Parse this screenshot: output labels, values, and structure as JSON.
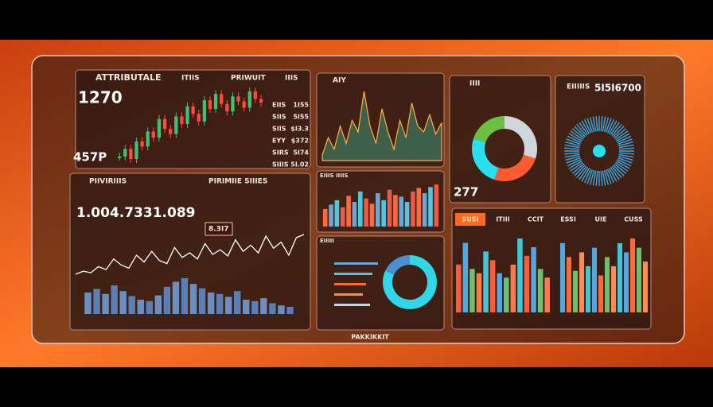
{
  "top_panel": {
    "tabs": [
      "ATTRIBUTALE",
      "ITIIS",
      "PRIWUIT",
      "IIIS"
    ],
    "value": "1270",
    "sub_value": "457P",
    "side_labels": [
      "EIIS",
      "SIIS",
      "SIIS",
      "EYY",
      "SIRS",
      "SIIIS"
    ],
    "side_values": [
      "1I55",
      "5I55",
      "$I3.3",
      "$372",
      "5I74",
      "5I.02"
    ],
    "candles": [
      40,
      46,
      38,
      52,
      48,
      60,
      55,
      70,
      62,
      58,
      72,
      66,
      80,
      74,
      68,
      85,
      78,
      90,
      82,
      76,
      88,
      84,
      79,
      92,
      86,
      83
    ]
  },
  "left_panel": {
    "tabs": [
      "PIIVIRIIIS",
      "PIRIMIIE SIIIES"
    ],
    "value": "1.004.7331.089",
    "callout": "8.3I7",
    "line": [
      10,
      14,
      12,
      20,
      16,
      30,
      22,
      18,
      35,
      26,
      40,
      28,
      24,
      45,
      32,
      38,
      30,
      50,
      36,
      42,
      34,
      55,
      40,
      48,
      38,
      60,
      44,
      52,
      35,
      58,
      62
    ],
    "bars": [
      30,
      35,
      28,
      40,
      32,
      25,
      20,
      18,
      26,
      38,
      45,
      50,
      42,
      36,
      30,
      28,
      24,
      32,
      20,
      18,
      22,
      15,
      12,
      10
    ]
  },
  "center_panel": {
    "title": "AIY",
    "area": [
      30,
      45,
      35,
      55,
      40,
      60,
      50,
      85,
      55,
      40,
      70,
      50,
      35,
      60,
      45,
      75,
      55,
      50,
      65,
      48,
      58
    ],
    "bars_title": "EIIIS IIIIS",
    "bars": [
      20,
      25,
      30,
      22,
      35,
      28,
      40,
      32,
      26,
      38,
      30,
      42,
      36,
      34,
      28,
      40,
      44,
      38,
      45,
      48
    ],
    "list_title": "EIIIII",
    "donut": [
      82,
      18
    ]
  },
  "right_panel": {
    "tabs": [
      "IIII",
      "EIIIIIS"
    ],
    "ring_value": "277",
    "donut": [
      30,
      25,
      25,
      20
    ],
    "value": "5I5I6700",
    "bar_tabs": [
      "SUSI",
      "ITIII",
      "CCIT",
      "ESSI",
      "UIE",
      "CUSS"
    ],
    "bars_a": [
      55,
      80,
      50,
      45,
      70,
      60,
      45,
      40,
      55,
      85,
      65,
      75,
      50,
      40
    ],
    "bars_b": [
      75,
      60,
      45,
      65,
      50,
      70,
      40,
      60,
      50,
      75,
      65,
      80,
      70,
      55
    ]
  },
  "footer": "PAKKIKKIT"
}
